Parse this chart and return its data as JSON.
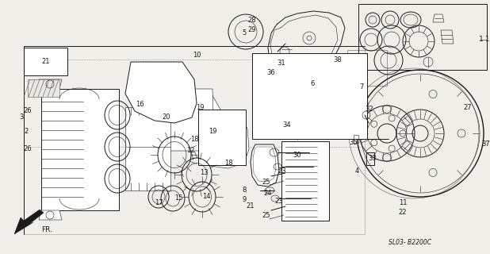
{
  "bg_color": "#f0efea",
  "diagram_code": "SL03- B2200C",
  "direction_label": "FR.",
  "fig_width": 6.18,
  "fig_height": 3.2,
  "dpi": 100
}
